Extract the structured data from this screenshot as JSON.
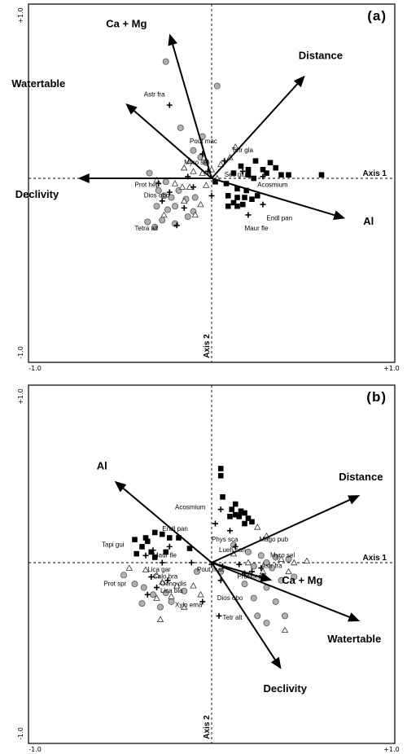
{
  "chart_data": [
    {
      "type": "scatter",
      "panel_label": "(a)",
      "axis1_label": "Axis 1",
      "axis2_label": "Axis 2",
      "xlim": [
        -1.0,
        1.0
      ],
      "ylim": [
        -1.0,
        1.0
      ],
      "tick_labels": {
        "y_top": "+1.0",
        "y_bottom": "-1.0",
        "x_left": "-1.0",
        "x_right": "+1.0"
      },
      "vectors": [
        {
          "name": "Ca + Mg",
          "x": -0.23,
          "y": 0.83
        },
        {
          "name": "Distance",
          "x": 0.51,
          "y": 0.59
        },
        {
          "name": "Watertable",
          "x": -0.47,
          "y": 0.43
        },
        {
          "name": "Declivity",
          "x": -0.73,
          "y": 0.0
        },
        {
          "name": "Al",
          "x": 0.73,
          "y": -0.23
        }
      ],
      "sample_groups": [
        {
          "symbol": "circle",
          "points": [
            [
              -0.25,
              0.67
            ],
            [
              0.03,
              0.53
            ],
            [
              -0.17,
              0.29
            ],
            [
              -0.05,
              0.24
            ],
            [
              -0.1,
              0.16
            ],
            [
              -0.34,
              0.03
            ],
            [
              -0.25,
              -0.02
            ],
            [
              -0.29,
              -0.07
            ],
            [
              -0.18,
              -0.07
            ],
            [
              -0.26,
              -0.1
            ],
            [
              -0.22,
              -0.11
            ],
            [
              -0.14,
              -0.12
            ],
            [
              -0.2,
              -0.16
            ],
            [
              -0.3,
              -0.16
            ],
            [
              -0.24,
              -0.18
            ],
            [
              -0.13,
              -0.22
            ],
            [
              -0.1,
              -0.19
            ],
            [
              -0.35,
              -0.25
            ],
            [
              -0.27,
              -0.24
            ],
            [
              -0.31,
              -0.28
            ],
            [
              -0.2,
              -0.26
            ],
            [
              -0.09,
              -0.11
            ],
            [
              -0.03,
              0.09
            ],
            [
              -0.06,
              0.12
            ]
          ]
        },
        {
          "symbol": "triangle",
          "points": [
            [
              0.13,
              0.18
            ],
            [
              -0.04,
              0.12
            ],
            [
              -0.12,
              0.1
            ],
            [
              0.1,
              0.12
            ],
            [
              0.05,
              0.08
            ],
            [
              -0.15,
              0.06
            ],
            [
              0.0,
              0.05
            ],
            [
              -0.1,
              0.04
            ],
            [
              -0.05,
              0.03
            ],
            [
              -0.3,
              -0.01
            ],
            [
              -0.16,
              -0.05
            ],
            [
              -0.12,
              -0.05
            ],
            [
              -0.03,
              -0.04
            ],
            [
              -0.15,
              -0.13
            ],
            [
              -0.06,
              -0.15
            ],
            [
              -0.26,
              -0.21
            ],
            [
              -0.09,
              -0.21
            ],
            [
              0.03,
              0.0
            ],
            [
              -0.2,
              -0.03
            ]
          ]
        },
        {
          "symbol": "square",
          "points": [
            [
              0.16,
              0.07
            ],
            [
              0.24,
              0.1
            ],
            [
              0.32,
              0.09
            ],
            [
              0.35,
              0.06
            ],
            [
              0.2,
              0.05
            ],
            [
              0.28,
              0.05
            ],
            [
              0.3,
              0.03
            ],
            [
              0.38,
              0.02
            ],
            [
              0.2,
              0.02
            ],
            [
              0.12,
              0.03
            ],
            [
              0.42,
              0.02
            ],
            [
              0.6,
              0.02
            ],
            [
              0.23,
              0.0
            ],
            [
              0.02,
              -0.02
            ],
            [
              0.08,
              -0.03
            ],
            [
              0.14,
              -0.06
            ],
            [
              0.19,
              -0.07
            ],
            [
              0.09,
              -0.1
            ],
            [
              0.14,
              -0.11
            ],
            [
              0.18,
              -0.11
            ],
            [
              0.25,
              -0.1
            ],
            [
              0.22,
              -0.12
            ],
            [
              0.09,
              -0.16
            ],
            [
              0.14,
              -0.16
            ],
            [
              0.17,
              -0.15
            ],
            [
              0.12,
              -0.14
            ]
          ]
        },
        {
          "symbol": "cross",
          "points": [
            [
              -0.23,
              0.42
            ],
            [
              -0.05,
              0.14
            ],
            [
              0.07,
              0.1
            ],
            [
              -0.02,
              0.04
            ],
            [
              0.17,
              0.04
            ],
            [
              -0.13,
              0.01
            ],
            [
              0.28,
              0.01
            ],
            [
              -0.29,
              -0.03
            ],
            [
              -0.23,
              -0.08
            ],
            [
              -0.27,
              -0.13
            ],
            [
              -0.15,
              -0.17
            ],
            [
              0.2,
              -0.21
            ],
            [
              0.28,
              -0.15
            ],
            [
              -0.19,
              -0.27
            ],
            [
              0.0,
              -0.1
            ],
            [
              -0.1,
              -0.05
            ]
          ]
        }
      ],
      "species_labels": [
        {
          "text": "Astr fra",
          "x": -0.37,
          "y": 0.47
        },
        {
          "text": "Pout mac",
          "x": -0.12,
          "y": 0.2
        },
        {
          "text": "Tetr gla",
          "x": 0.11,
          "y": 0.15
        },
        {
          "text": "Myro sel",
          "x": -0.15,
          "y": 0.08
        },
        {
          "text": "Seti glu",
          "x": 0.07,
          "y": 0.01
        },
        {
          "text": "Acosmium",
          "x": 0.25,
          "y": -0.05
        },
        {
          "text": "Prot hep",
          "x": -0.42,
          "y": -0.05
        },
        {
          "text": "Dios obo",
          "x": -0.37,
          "y": -0.11
        },
        {
          "text": "Endl pan",
          "x": 0.3,
          "y": -0.24
        },
        {
          "text": "Tetra alt",
          "x": -0.42,
          "y": -0.3
        },
        {
          "text": "Maur fle",
          "x": 0.18,
          "y": -0.3
        }
      ]
    },
    {
      "type": "scatter",
      "panel_label": "(b)",
      "axis1_label": "Axis 1",
      "axis2_label": "Axis 2",
      "xlim": [
        -1.0,
        1.0
      ],
      "ylim": [
        -1.0,
        1.0
      ],
      "tick_labels": {
        "y_top": "+1.0",
        "y_bottom": "-1.0",
        "x_left": "-1.0",
        "x_right": "+1.0"
      },
      "vectors": [
        {
          "name": "Al",
          "x": -0.53,
          "y": 0.46
        },
        {
          "name": "Distance",
          "x": 0.81,
          "y": 0.38
        },
        {
          "name": "Ca + Mg",
          "x": 0.33,
          "y": -0.1
        },
        {
          "name": "Watertable",
          "x": 0.81,
          "y": -0.33
        },
        {
          "name": "Declivity",
          "x": 0.38,
          "y": -0.6
        }
      ],
      "sample_groups": [
        {
          "symbol": "circle",
          "points": [
            [
              0.12,
              0.1
            ],
            [
              0.2,
              0.06
            ],
            [
              0.27,
              0.04
            ],
            [
              0.35,
              0.03
            ],
            [
              0.42,
              0.02
            ],
            [
              0.3,
              0.0
            ],
            [
              0.23,
              -0.02
            ],
            [
              0.33,
              -0.03
            ],
            [
              0.2,
              -0.07
            ],
            [
              0.28,
              -0.08
            ],
            [
              0.38,
              -0.1
            ],
            [
              0.45,
              -0.08
            ],
            [
              0.05,
              -0.05
            ],
            [
              0.18,
              -0.12
            ],
            [
              0.3,
              -0.14
            ],
            [
              0.23,
              -0.2
            ],
            [
              0.35,
              -0.22
            ],
            [
              0.25,
              -0.3
            ],
            [
              0.3,
              -0.34
            ],
            [
              0.4,
              -0.3
            ],
            [
              -0.42,
              -0.12
            ],
            [
              -0.37,
              -0.14
            ],
            [
              -0.32,
              -0.18
            ],
            [
              -0.25,
              -0.17
            ],
            [
              -0.22,
              -0.22
            ],
            [
              -0.38,
              -0.23
            ],
            [
              -0.28,
              -0.25
            ],
            [
              -0.15,
              -0.16
            ],
            [
              -0.48,
              -0.07
            ],
            [
              -0.08,
              -0.05
            ]
          ]
        },
        {
          "symbol": "triangle",
          "points": [
            [
              0.25,
              0.2
            ],
            [
              0.3,
              0.15
            ],
            [
              0.12,
              0.05
            ],
            [
              0.52,
              0.01
            ],
            [
              0.45,
              0.0
            ],
            [
              0.38,
              0.02
            ],
            [
              0.2,
              0.0
            ],
            [
              0.28,
              -0.05
            ],
            [
              0.42,
              -0.05
            ],
            [
              -0.45,
              -0.03
            ],
            [
              -0.36,
              -0.04
            ],
            [
              -0.3,
              -0.07
            ],
            [
              -0.27,
              -0.11
            ],
            [
              -0.19,
              -0.13
            ],
            [
              -0.22,
              -0.19
            ],
            [
              -0.1,
              -0.13
            ],
            [
              -0.06,
              -0.18
            ],
            [
              -0.3,
              -0.2
            ],
            [
              -0.15,
              -0.25
            ],
            [
              -0.28,
              -0.32
            ],
            [
              0.4,
              -0.38
            ]
          ]
        },
        {
          "symbol": "square",
          "points": [
            [
              0.05,
              0.53
            ],
            [
              0.05,
              0.49
            ],
            [
              0.06,
              0.37
            ],
            [
              0.13,
              0.33
            ],
            [
              0.11,
              0.3
            ],
            [
              0.18,
              0.28
            ],
            [
              0.15,
              0.26
            ],
            [
              0.2,
              0.25
            ],
            [
              0.22,
              0.23
            ],
            [
              0.18,
              0.22
            ],
            [
              0.16,
              0.29
            ],
            [
              0.13,
              0.27
            ],
            [
              0.1,
              0.26
            ],
            [
              -0.36,
              0.14
            ],
            [
              -0.31,
              0.17
            ],
            [
              -0.27,
              0.16
            ],
            [
              -0.23,
              0.14
            ],
            [
              -0.18,
              0.14
            ],
            [
              -0.35,
              0.12
            ],
            [
              -0.38,
              0.09
            ],
            [
              -0.33,
              0.06
            ],
            [
              -0.31,
              0.03
            ],
            [
              -0.25,
              0.06
            ],
            [
              -0.41,
              0.05
            ],
            [
              -0.42,
              0.13
            ],
            [
              -0.12,
              0.08
            ]
          ]
        },
        {
          "symbol": "cross",
          "points": [
            [
              0.05,
              0.3
            ],
            [
              0.02,
              0.22
            ],
            [
              0.1,
              0.18
            ],
            [
              -0.23,
              0.09
            ],
            [
              -0.32,
              0.07
            ],
            [
              -0.36,
              0.04
            ],
            [
              -0.27,
              0.0
            ],
            [
              -0.11,
              0.0
            ],
            [
              0.0,
              -0.01
            ],
            [
              0.06,
              -0.02
            ],
            [
              0.15,
              -0.01
            ],
            [
              0.27,
              -0.03
            ],
            [
              0.22,
              -0.05
            ],
            [
              -0.33,
              -0.08
            ],
            [
              -0.24,
              -0.1
            ],
            [
              -0.3,
              -0.14
            ],
            [
              -0.35,
              -0.18
            ],
            [
              0.05,
              -0.1
            ],
            [
              -0.05,
              -0.22
            ],
            [
              0.04,
              -0.3
            ],
            [
              0.18,
              -0.06
            ],
            [
              0.13,
              0.09
            ]
          ]
        }
      ],
      "species_labels": [
        {
          "text": "Acosmium",
          "x": -0.2,
          "y": 0.3
        },
        {
          "text": "Endl pan",
          "x": -0.27,
          "y": 0.18
        },
        {
          "text": "Tapi gui",
          "x": -0.6,
          "y": 0.09
        },
        {
          "text": "Phys sca",
          "x": 0.0,
          "y": 0.12
        },
        {
          "text": "Mago pub",
          "x": 0.26,
          "y": 0.12
        },
        {
          "text": "Lueh can",
          "x": 0.04,
          "y": 0.06
        },
        {
          "text": "Maur fle",
          "x": -0.32,
          "y": 0.03
        },
        {
          "text": "Myro sel",
          "x": 0.32,
          "y": 0.03
        },
        {
          "text": "Astr fra",
          "x": 0.27,
          "y": -0.03
        },
        {
          "text": "Lica gar",
          "x": -0.35,
          "y": -0.05
        },
        {
          "text": "Pout mac",
          "x": -0.08,
          "y": -0.05
        },
        {
          "text": "Calo bra",
          "x": -0.32,
          "y": -0.09
        },
        {
          "text": "Prot hep",
          "x": 0.14,
          "y": -0.09
        },
        {
          "text": "Prot spr",
          "x": -0.59,
          "y": -0.13
        },
        {
          "text": "Oeno dis",
          "x": -0.28,
          "y": -0.13
        },
        {
          "text": "Lica bla",
          "x": -0.28,
          "y": -0.17
        },
        {
          "text": "Dios obo",
          "x": 0.03,
          "y": -0.21
        },
        {
          "text": "Xylo ema",
          "x": -0.2,
          "y": -0.25
        },
        {
          "text": "Tetr alt",
          "x": 0.06,
          "y": -0.32
        }
      ]
    }
  ]
}
